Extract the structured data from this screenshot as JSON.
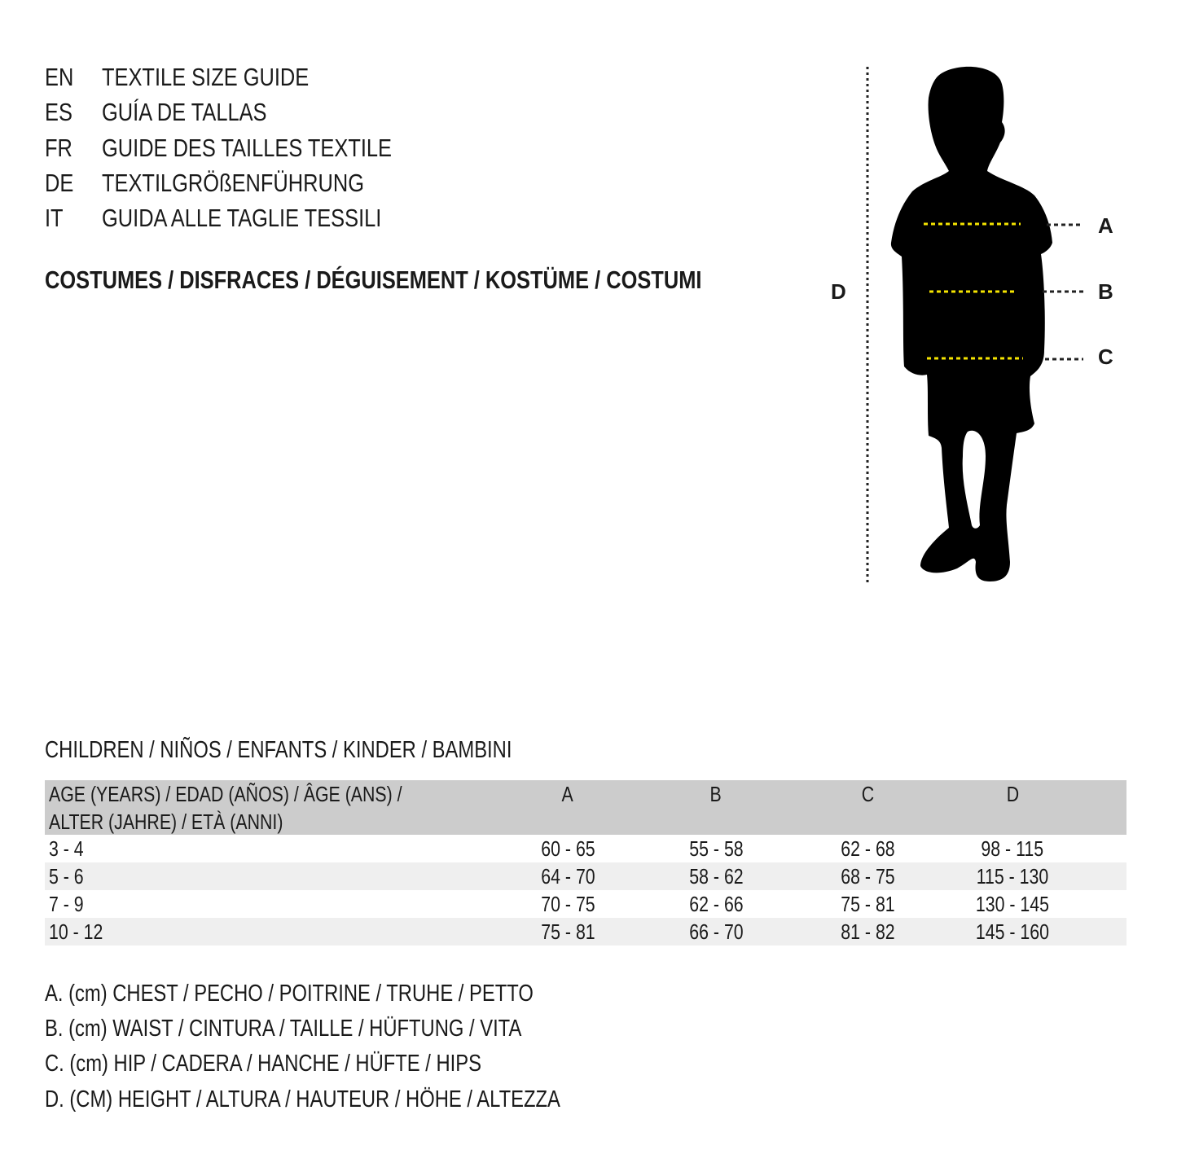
{
  "languages": [
    {
      "code": "EN",
      "title": "TEXTILE SIZE GUIDE"
    },
    {
      "code": "ES",
      "title": "GUÍA DE TALLAS"
    },
    {
      "code": "FR",
      "title": "GUIDE DES TAILLES TEXTILE"
    },
    {
      "code": "DE",
      "title": "TEXTILGRÖßENFÜHRUNG"
    },
    {
      "code": "IT",
      "title": "GUIDA ALLE TAGLIE TESSILI"
    }
  ],
  "category": "COSTUMES / DISFRACES / DÉGUISEMENT / KOSTÜME / COSTUMI",
  "figure": {
    "labels": {
      "a": "A",
      "b": "B",
      "c": "C",
      "d": "D"
    },
    "measure_line_color": "#f5e400"
  },
  "table": {
    "title": "CHILDREN / NIÑOS / ENFANTS / KINDER / BAMBINI",
    "header": {
      "age_line1": "AGE (YEARS) / EDAD (AÑOS) / ÂGE (ANS) /",
      "age_line2": "ALTER (JAHRE) / ETÀ (ANNI)",
      "a": "A",
      "b": "B",
      "c": "C",
      "d": "D"
    },
    "rows": [
      {
        "age": "3 - 4",
        "a": "60 - 65",
        "b": "55 - 58",
        "c": "62 - 68",
        "d": "98 - 115"
      },
      {
        "age": "5 - 6",
        "a": "64 - 70",
        "b": "58 - 62",
        "c": "68 - 75",
        "d": "115 - 130"
      },
      {
        "age": "7 - 9",
        "a": "70 - 75",
        "b": "62 - 66",
        "c": "75 - 81",
        "d": "130 - 145"
      },
      {
        "age": "10 - 12",
        "a": "75 - 81",
        "b": "66 - 70",
        "c": "81 - 82",
        "d": "145 - 160"
      }
    ]
  },
  "legend": [
    "A. (cm) CHEST / PECHO / POITRINE / TRUHE / PETTO",
    "B. (cm) WAIST / CINTURA / TAILLE / HÜFTUNG / VITA",
    "C. (cm) HIP / CADERA / HANCHE / HÜFTE / HIPS",
    "D. (CM) HEIGHT / ALTURA / HAUTEUR / HÖHE / ALTEZZA"
  ]
}
